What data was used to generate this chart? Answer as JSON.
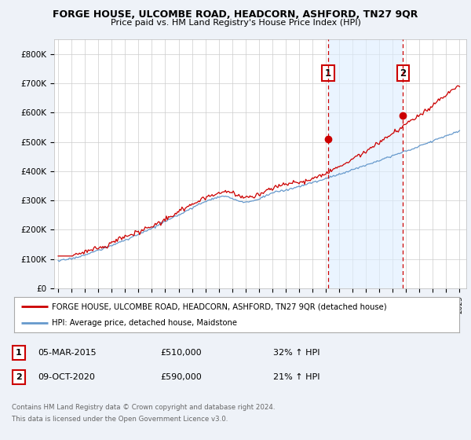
{
  "title": "FORGE HOUSE, ULCOMBE ROAD, HEADCORN, ASHFORD, TN27 9QR",
  "subtitle": "Price paid vs. HM Land Registry's House Price Index (HPI)",
  "ylim": [
    0,
    850000
  ],
  "yticks": [
    0,
    100000,
    200000,
    300000,
    400000,
    500000,
    600000,
    700000,
    800000
  ],
  "ytick_labels": [
    "£0",
    "£100K",
    "£200K",
    "£300K",
    "£400K",
    "£500K",
    "£600K",
    "£700K",
    "£800K"
  ],
  "xstart_year": 1995,
  "xend_year": 2025,
  "sale1_date": 2015.17,
  "sale1_price": 510000,
  "sale1_label": "1",
  "sale1_text": "05-MAR-2015",
  "sale1_pct": "32% ↑ HPI",
  "sale2_date": 2020.77,
  "sale2_price": 590000,
  "sale2_label": "2",
  "sale2_text": "09-OCT-2020",
  "sale2_pct": "21% ↑ HPI",
  "line1_color": "#cc0000",
  "line2_color": "#6699cc",
  "fill_color": "#ddeeff",
  "dashed_color": "#cc0000",
  "legend_line1": "FORGE HOUSE, ULCOMBE ROAD, HEADCORN, ASHFORD, TN27 9QR (detached house)",
  "legend_line2": "HPI: Average price, detached house, Maidstone",
  "footer1": "Contains HM Land Registry data © Crown copyright and database right 2024.",
  "footer2": "This data is licensed under the Open Government Licence v3.0.",
  "background_color": "#eef2f8",
  "plot_bg": "#ffffff",
  "label_box_color": "#cc0000"
}
